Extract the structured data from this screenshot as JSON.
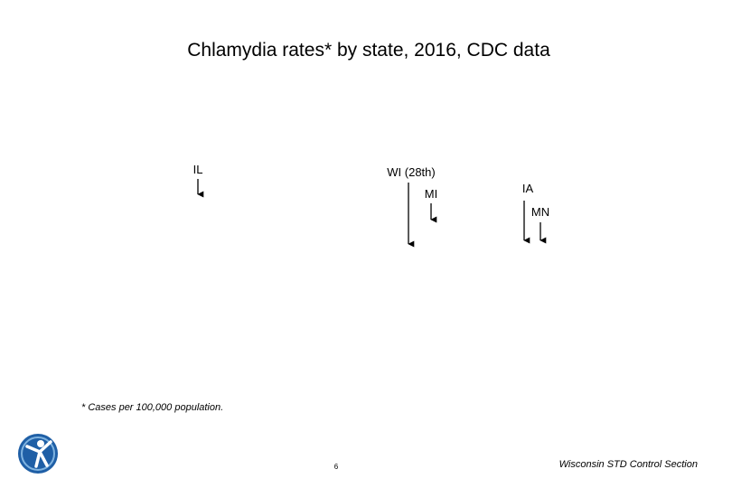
{
  "slide": {
    "title": "Chlamydia rates* by state, 2016, CDC data",
    "labels": [
      "IL",
      "WI (28th)",
      "MI",
      "IA",
      "MN"
    ],
    "footnote": "* Cases per 100,000 population.",
    "page_number": "6",
    "footer": "Wisconsin STD Control Section"
  }
}
